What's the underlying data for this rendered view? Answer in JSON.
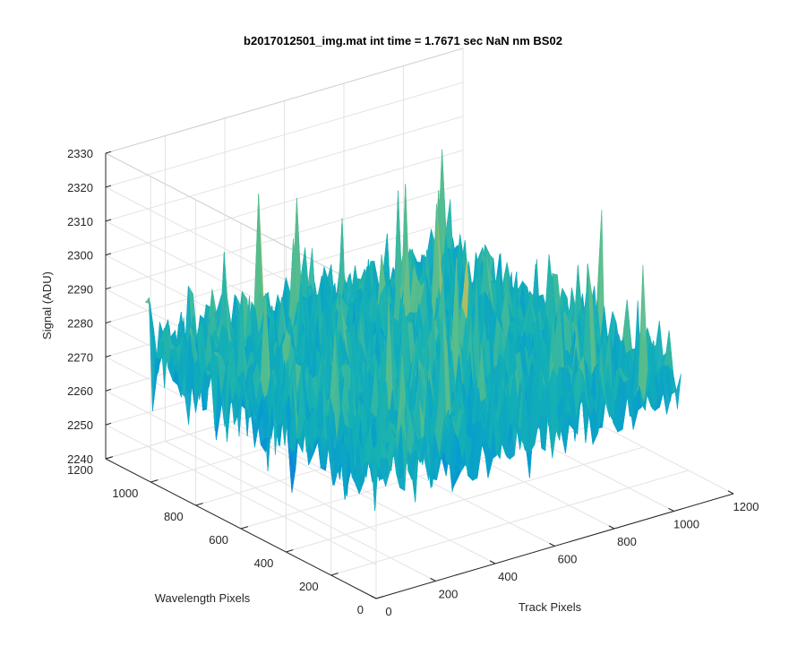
{
  "chart_data": {
    "type": "surface",
    "title": "b2017012501_img.mat int time = 1.7671 sec  NaN nm BS02",
    "xlabel": "Track Pixels",
    "ylabel": "Wavelength Pixels",
    "zlabel": "Signal (ADU)",
    "xlim": [
      0,
      1200
    ],
    "ylim": [
      0,
      1200
    ],
    "zlim": [
      2240,
      2330
    ],
    "x_ticks": [
      "0",
      "200",
      "400",
      "600",
      "800",
      "1000",
      "1200"
    ],
    "y_ticks": [
      "0",
      "200",
      "400",
      "600",
      "800",
      "1000",
      "1200"
    ],
    "z_ticks": [
      "2240",
      "2250",
      "2260",
      "2270",
      "2280",
      "2290",
      "2300",
      "2310",
      "2320",
      "2330"
    ],
    "data_extent": {
      "x": [
        0,
        1024
      ],
      "y": [
        0,
        1024
      ]
    },
    "signal_mean": 2278,
    "signal_range": [
      2240,
      2318
    ],
    "colormap": "parula",
    "grid": true
  }
}
